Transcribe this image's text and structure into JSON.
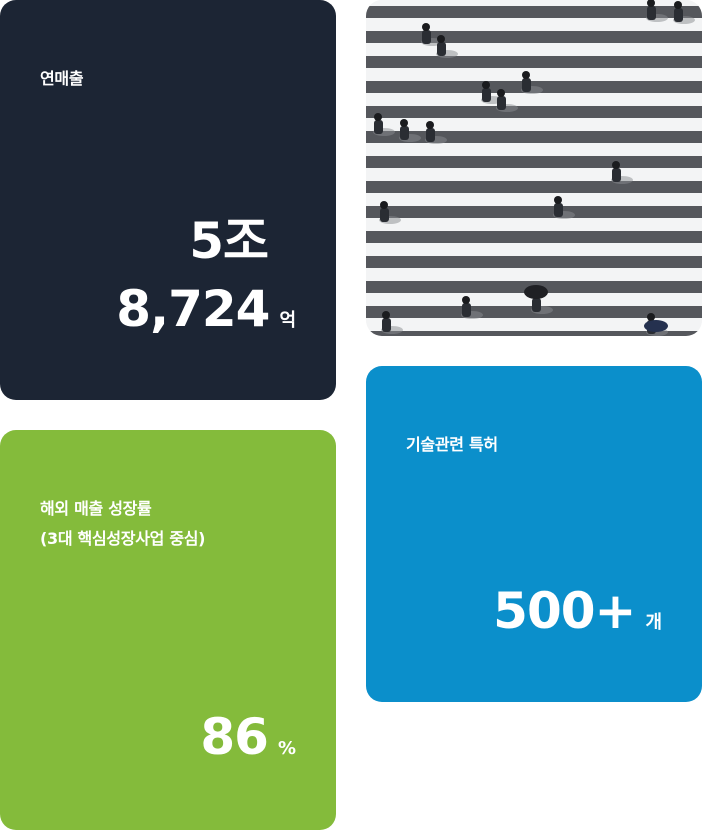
{
  "revenue_card": {
    "label": "연매출",
    "value_line1": "5조",
    "value_line2": "8,724",
    "unit": "억"
  },
  "patents_card": {
    "label": "기술관련 특허",
    "value": "500+",
    "unit": "개"
  },
  "growth_card": {
    "label_line1": "해외 매출 성장률",
    "label_line2": "(3대 핵심성장사업 중심)",
    "value": "86",
    "unit": "%"
  },
  "photo_card": {
    "subject": "crosswalk-pedestrians-photo"
  },
  "colors": {
    "revenue_bg": "#1c2534",
    "patents_bg": "#0b8fcb",
    "growth_bg": "#84bb3b",
    "text": "#ffffff"
  }
}
